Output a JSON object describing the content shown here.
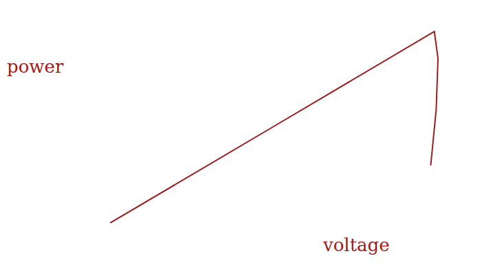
{
  "chart_data": {
    "type": "line",
    "x_label": "voltage",
    "y_label": "power",
    "x": [
      0,
      45,
      89,
      90,
      89.5,
      88
    ],
    "values": [
      0,
      47,
      93,
      80,
      55,
      28
    ],
    "color": "#9b1c1c",
    "xlim": [
      0,
      100
    ],
    "ylim": [
      0,
      100
    ],
    "tick_labels": false,
    "grid": false
  }
}
